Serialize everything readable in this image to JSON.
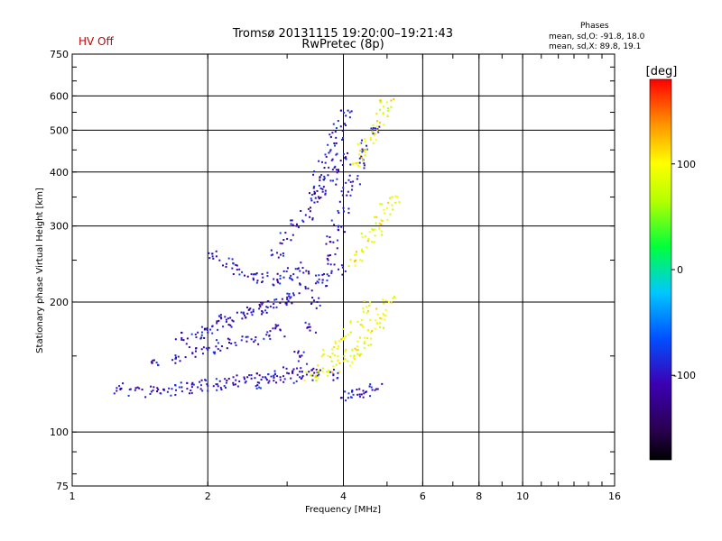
{
  "header": {
    "title_line1": "Tromsø 20131115 19:20:00–19:21:43",
    "title_line2": "RwPretec (8p)",
    "status": "HV Off",
    "status_color": "#cc0000",
    "stats_title": "Phases",
    "stats_line1": "mean, sd,O: -91.8, 18.0",
    "stats_line2": "mean, sd,X:  89.8, 19.1"
  },
  "chart_data": {
    "type": "scatter",
    "title": "Tromsø 20131115 19:20:00–19:21:43",
    "subtitle": "RwPretec (8p)",
    "xlabel": "Frequency [MHz]",
    "ylabel": "Stationary phase Virtual Height [km]",
    "x_scale": "log",
    "y_scale": "log",
    "xlim": [
      1,
      16
    ],
    "ylim": [
      75,
      750
    ],
    "x_ticks": [
      1,
      2,
      4,
      6,
      8,
      10,
      16
    ],
    "y_ticks": [
      75,
      100,
      200,
      300,
      400,
      500,
      600,
      750
    ],
    "grid": true,
    "colorbar": {
      "label": "[deg]",
      "min": -180,
      "max": 180,
      "ticks": [
        -100,
        0,
        100
      ],
      "colormap": "rainbow"
    },
    "series": [
      {
        "mode": "O",
        "phase_mean": -91.8,
        "phase_sd": 18.0,
        "color_phase": -100,
        "traces": [
          {
            "points": [
              [
                1.28,
                126
              ],
              [
                1.38,
                125
              ],
              [
                1.5,
                124
              ],
              [
                1.6,
                125
              ],
              [
                1.7,
                125
              ],
              [
                1.8,
                126
              ],
              [
                1.9,
                127
              ],
              [
                2.0,
                128
              ],
              [
                2.1,
                129
              ],
              [
                2.2,
                130
              ],
              [
                2.35,
                131
              ],
              [
                2.5,
                133
              ],
              [
                2.65,
                134
              ],
              [
                2.8,
                135
              ],
              [
                3.0,
                137
              ],
              [
                3.2,
                138
              ],
              [
                3.4,
                139
              ]
            ]
          },
          {
            "points": [
              [
                1.55,
                143
              ],
              [
                1.7,
                148
              ],
              [
                1.85,
                152
              ],
              [
                2.0,
                155
              ],
              [
                2.15,
                158
              ],
              [
                2.3,
                161
              ],
              [
                2.5,
                164
              ],
              [
                2.7,
                168
              ],
              [
                2.9,
                172
              ]
            ]
          },
          {
            "points": [
              [
                1.75,
                165
              ],
              [
                1.9,
                170
              ],
              [
                2.05,
                176
              ],
              [
                2.2,
                182
              ],
              [
                2.4,
                188
              ],
              [
                2.6,
                193
              ],
              [
                2.8,
                198
              ],
              [
                3.0,
                203
              ]
            ]
          },
          {
            "points": [
              [
                2.05,
                255
              ],
              [
                2.2,
                245
              ],
              [
                2.35,
                238
              ],
              [
                2.5,
                232
              ],
              [
                2.65,
                228
              ],
              [
                2.8,
                226
              ],
              [
                2.95,
                228
              ],
              [
                3.1,
                232
              ],
              [
                3.25,
                240
              ]
            ]
          },
          {
            "points": [
              [
                2.0,
                170
              ],
              [
                2.2,
                180
              ],
              [
                2.45,
                188
              ],
              [
                2.7,
                195
              ],
              [
                3.0,
                205
              ],
              [
                3.3,
                215
              ],
              [
                3.6,
                225
              ],
              [
                3.9,
                238
              ]
            ]
          },
          {
            "points": [
              [
                2.85,
                260
              ],
              [
                3.0,
                280
              ],
              [
                3.15,
                300
              ],
              [
                3.3,
                318
              ],
              [
                3.45,
                340
              ],
              [
                3.6,
                360
              ],
              [
                3.75,
                382
              ],
              [
                3.9,
                405
              ],
              [
                4.05,
                430
              ]
            ]
          },
          {
            "points": [
              [
                3.2,
                150
              ],
              [
                3.35,
                175
              ],
              [
                3.5,
                200
              ],
              [
                3.6,
                225
              ],
              [
                3.7,
                250
              ],
              [
                3.8,
                275
              ],
              [
                3.9,
                300
              ],
              [
                4.0,
                330
              ],
              [
                4.1,
                360
              ]
            ]
          },
          {
            "points": [
              [
                3.45,
                360
              ],
              [
                3.55,
                390
              ],
              [
                3.65,
                420
              ],
              [
                3.75,
                450
              ],
              [
                3.85,
                480
              ],
              [
                3.95,
                510
              ],
              [
                4.05,
                540
              ]
            ]
          },
          {
            "points": [
              [
                2.6,
                130
              ],
              [
                2.9,
                132
              ],
              [
                3.2,
                134
              ],
              [
                3.5,
                135
              ],
              [
                3.8,
                136
              ]
            ]
          },
          {
            "points": [
              [
                4.1,
                120
              ],
              [
                4.3,
                122
              ],
              [
                4.5,
                124
              ],
              [
                4.7,
                125
              ]
            ]
          },
          {
            "points": [
              [
                4.2,
                380
              ],
              [
                4.35,
                420
              ],
              [
                4.5,
                460
              ],
              [
                4.65,
                500
              ]
            ]
          }
        ]
      },
      {
        "mode": "X",
        "phase_mean": 89.8,
        "phase_sd": 19.1,
        "color_phase": 95,
        "traces": [
          {
            "points": [
              [
                3.4,
                136
              ],
              [
                3.6,
                138
              ],
              [
                3.8,
                142
              ],
              [
                4.0,
                146
              ],
              [
                4.15,
                150
              ],
              [
                4.3,
                155
              ],
              [
                4.45,
                162
              ],
              [
                4.6,
                170
              ],
              [
                4.75,
                178
              ],
              [
                4.9,
                188
              ],
              [
                5.05,
                200
              ]
            ]
          },
          {
            "points": [
              [
                4.25,
                250
              ],
              [
                4.4,
                265
              ],
              [
                4.55,
                280
              ],
              [
                4.7,
                295
              ],
              [
                4.85,
                310
              ],
              [
                5.0,
                330
              ],
              [
                5.15,
                350
              ]
            ]
          },
          {
            "points": [
              [
                4.3,
                420
              ],
              [
                4.45,
                450
              ],
              [
                4.6,
                480
              ],
              [
                4.75,
                510
              ],
              [
                4.9,
                545
              ],
              [
                5.0,
                580
              ]
            ]
          },
          {
            "points": [
              [
                3.7,
                150
              ],
              [
                3.9,
                158
              ],
              [
                4.1,
                168
              ],
              [
                4.3,
                180
              ],
              [
                4.5,
                195
              ]
            ]
          }
        ]
      }
    ]
  }
}
